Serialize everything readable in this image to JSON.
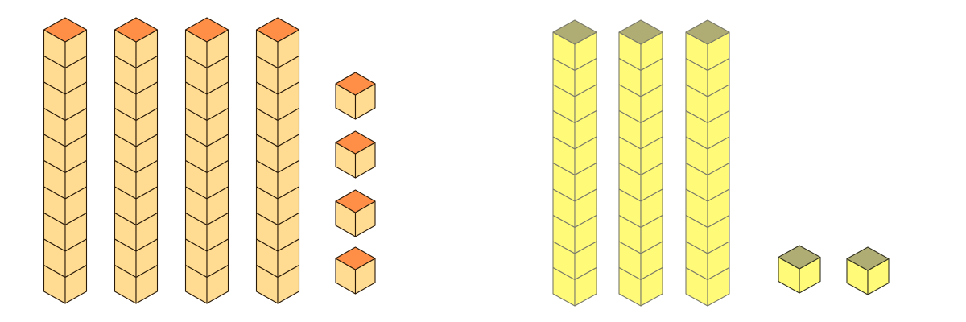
{
  "groups": [
    {
      "name": "orange",
      "tens_rods": 4,
      "ones_cubes": 4,
      "cubes_per_rod": 10,
      "colors": {
        "top": "#FF8F47",
        "side": "#FFDC91",
        "edge": "#2a1a0a"
      }
    },
    {
      "name": "yellow",
      "tens_rods": 3,
      "ones_cubes": 2,
      "cubes_per_rod": 10,
      "colors": {
        "top": "#B0AD74",
        "side": "#FFFA78",
        "edge": "#7a7a6a",
        "unit_edge": "#333322"
      }
    }
  ]
}
